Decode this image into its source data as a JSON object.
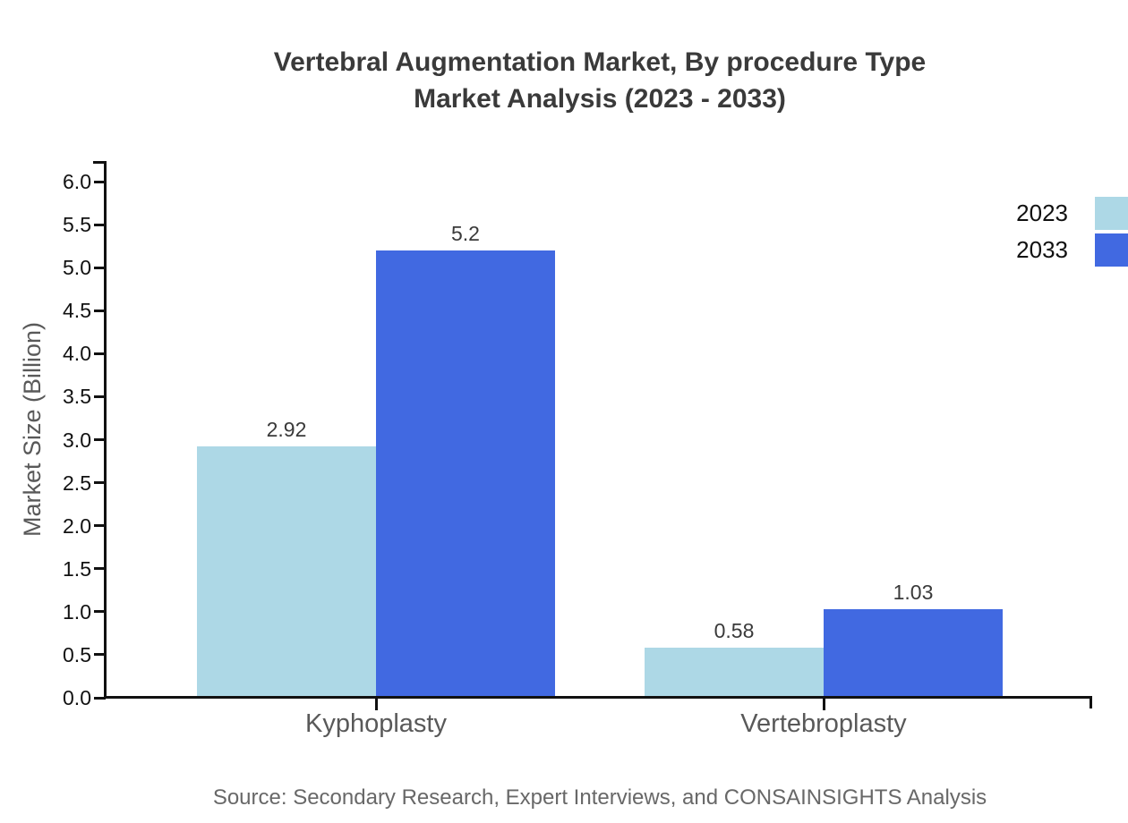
{
  "page": {
    "title_line1": "Vertebral Augmentation Market, By procedure Type",
    "title_line2": "Market Analysis (2023 - 2033)",
    "source": "Source: Secondary Research, Expert Interviews, and CONSAINSIGHTS Analysis"
  },
  "chart_data": {
    "type": "bar",
    "title": "Vertebral Augmentation Market, By procedure Type\nMarket Analysis (2023 - 2033)",
    "categories": [
      "Kyphoplasty",
      "Vertebroplasty"
    ],
    "series": [
      {
        "name": "2023",
        "color": "#ADD8E6",
        "values": [
          2.92,
          0.58
        ],
        "labels": [
          "2.92",
          "0.58"
        ]
      },
      {
        "name": "2033",
        "color": "#4169E1",
        "values": [
          5.2,
          1.03
        ],
        "labels": [
          "5.2",
          "1.03"
        ]
      }
    ],
    "xlabel": "",
    "ylabel": "Market Size (Billion)",
    "ylim": [
      0,
      6
    ],
    "ytick_step": 0.5,
    "yticks": [
      "0.0",
      "0.5",
      "1.0",
      "1.5",
      "2.0",
      "2.5",
      "3.0",
      "3.5",
      "4.0",
      "4.5",
      "5.0",
      "5.5",
      "6.0"
    ],
    "grid": false,
    "legend_position": "top-right",
    "data_labels_shown": true,
    "source_note": "Source: Secondary Research, Expert Interviews, and CONSAINSIGHTS Analysis",
    "colors": {
      "axis": "#111111",
      "title_text": "#3a3a3a",
      "muted_text": "#595959",
      "source_text": "#686868"
    }
  }
}
